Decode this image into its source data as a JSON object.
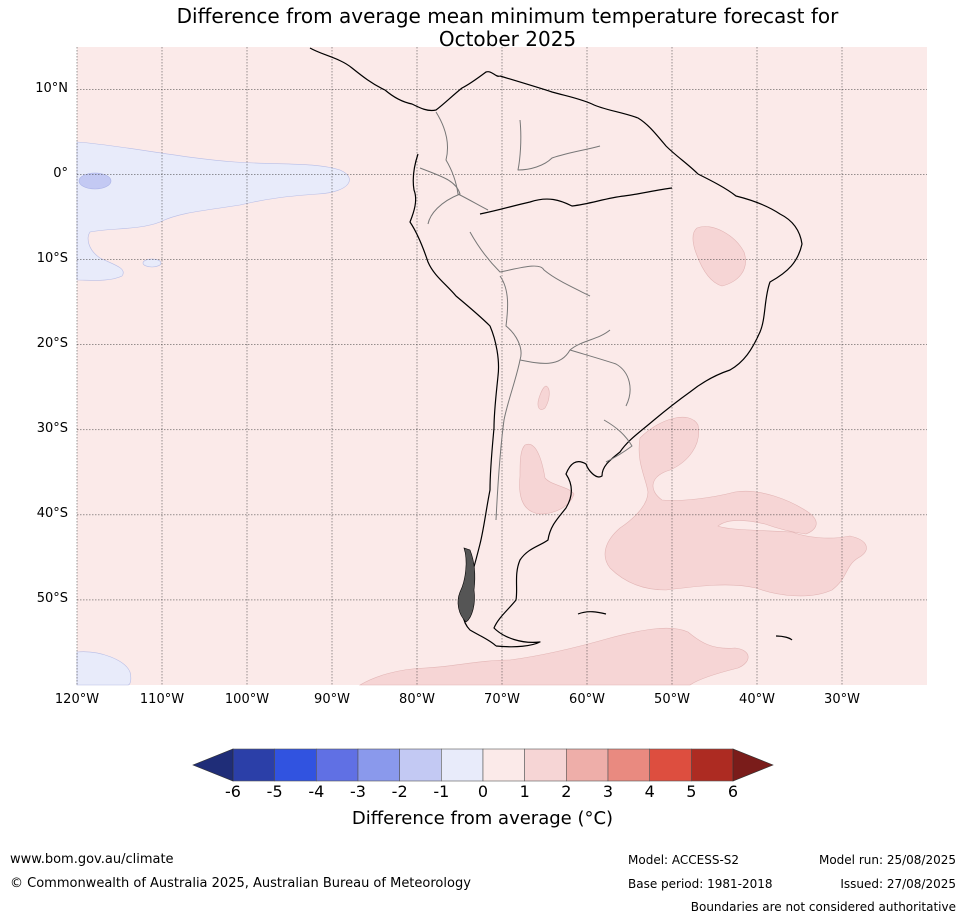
{
  "title_line1": "Difference from average mean minimum temperature forecast for",
  "title_line2": "October 2025",
  "lat_labels": [
    "10°N",
    "0°",
    "10°S",
    "20°S",
    "30°S",
    "40°S",
    "50°S"
  ],
  "lat_values": [
    10,
    0,
    -10,
    -20,
    -30,
    -40,
    -50
  ],
  "lon_labels": [
    "120°W",
    "110°W",
    "100°W",
    "90°W",
    "80°W",
    "70°W",
    "60°W",
    "50°W",
    "40°W",
    "30°W"
  ],
  "lon_values": [
    -120,
    -110,
    -100,
    -90,
    -80,
    -70,
    -60,
    -50,
    -40,
    -30
  ],
  "map_extent": {
    "lon_min": -120,
    "lon_max": -20,
    "lat_min": -60,
    "lat_max": 15
  },
  "colorbar": {
    "ticks": [
      "-6",
      "-5",
      "-4",
      "-3",
      "-2",
      "-1",
      "0",
      "1",
      "2",
      "3",
      "4",
      "5",
      "6"
    ],
    "colors": [
      "#2b3fa8",
      "#3153e0",
      "#6070e4",
      "#8a99ec",
      "#c3c9f3",
      "#e8ebfa",
      "#fbeae9",
      "#f6d5d5",
      "#eeaea9",
      "#e98a80",
      "#dd4e3f",
      "#ad2b22"
    ],
    "under_color": "#1f2d78",
    "over_color": "#7a1c1a",
    "label": "Difference from average (°C)"
  },
  "colors": {
    "background_field": "#fbeae9",
    "cool_field": "#e8ebfa",
    "cool_core": "#c3c9f3",
    "warm_patch": "#f6d5d5"
  },
  "footer": {
    "url": "www.bom.gov.au/climate",
    "copyright": "© Commonwealth of Australia 2025, Australian Bureau of Meteorology",
    "model": "Model: ACCESS-S2",
    "base_period": "Base period: 1981-2018",
    "model_run": "Model run: 25/08/2025",
    "issued": "Issued: 27/08/2025",
    "disclaimer": "Boundaries are not considered authoritative"
  }
}
